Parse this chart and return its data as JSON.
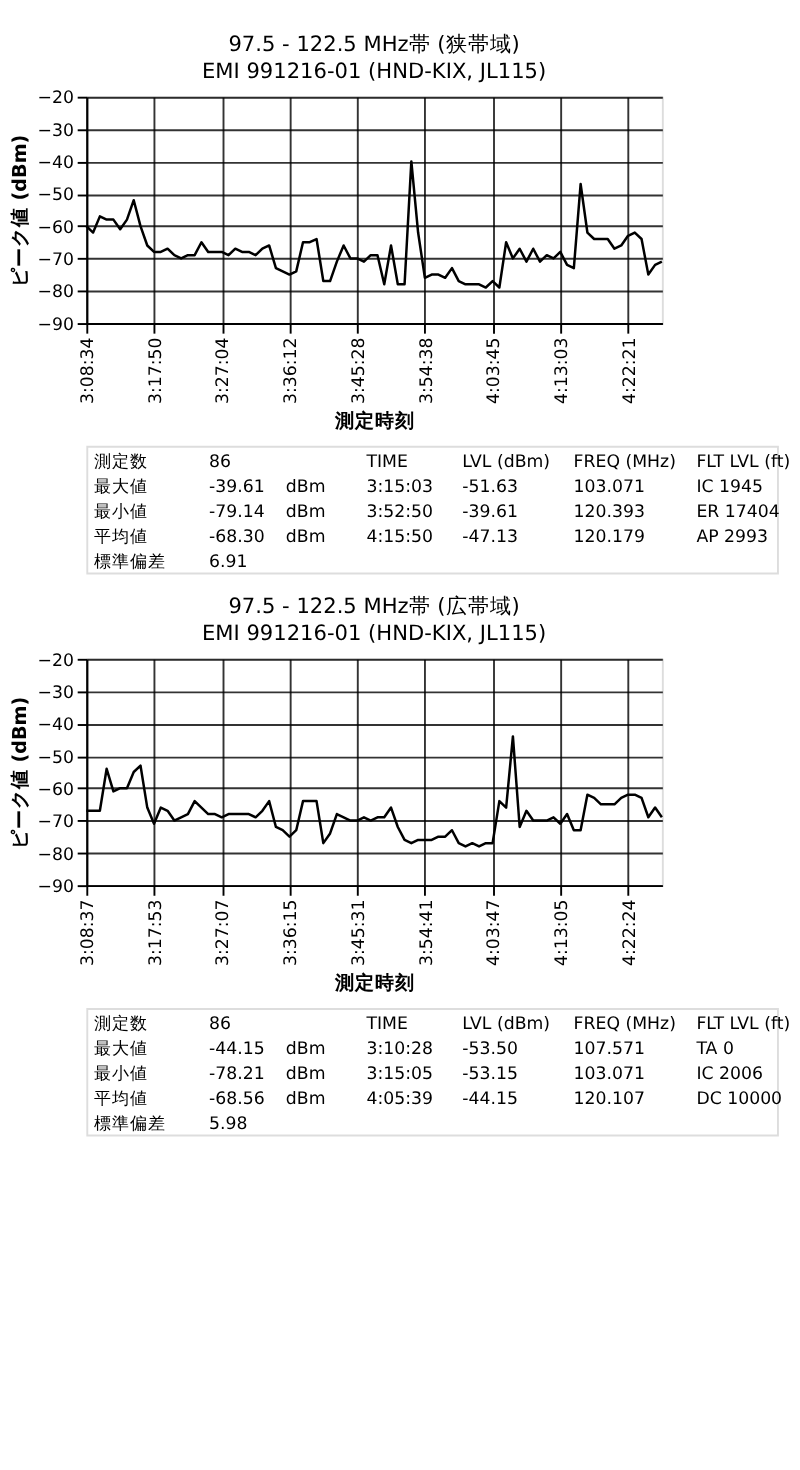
{
  "chart_data": [
    {
      "type": "line",
      "title": "97.5 - 122.5 MHz帯 (狭帯域)",
      "subtitle": "EMI 991216-01 (HND-KIX, JL115)",
      "xlabel": "測定時刻",
      "ylabel": "ピーク値 (dBm)",
      "color": "#000000",
      "grid": true,
      "ylim": [
        -90,
        -20
      ],
      "yticks": [
        -90,
        -80,
        -70,
        -60,
        -50,
        -40,
        -30,
        -20
      ],
      "categories": [
        "3:08:34",
        null,
        null,
        null,
        null,
        null,
        null,
        null,
        null,
        null,
        "3:17:50",
        null,
        null,
        null,
        null,
        null,
        null,
        null,
        null,
        null,
        "3:27:04",
        null,
        null,
        null,
        null,
        null,
        null,
        null,
        null,
        null,
        "3:36:12",
        null,
        null,
        null,
        null,
        null,
        null,
        null,
        null,
        null,
        "3:45:28",
        null,
        null,
        null,
        null,
        null,
        null,
        null,
        null,
        null,
        "3:54:38",
        null,
        null,
        null,
        null,
        null,
        null,
        null,
        null,
        null,
        "4:03:45",
        null,
        null,
        null,
        null,
        null,
        null,
        null,
        null,
        null,
        "4:13:03",
        null,
        null,
        null,
        null,
        null,
        null,
        null,
        null,
        null,
        "4:22:21",
        null,
        null,
        null,
        null,
        null
      ],
      "values": [
        -60,
        -62,
        -57,
        -58,
        -58,
        -61,
        -58,
        -52,
        -60,
        -66,
        -68,
        -68,
        -67,
        -69,
        -70,
        -69,
        -69,
        -65,
        -68,
        -68,
        -68,
        -69,
        -67,
        -68,
        -68,
        -69,
        -67,
        -66,
        -73,
        -74,
        -75,
        -74,
        -65,
        -65,
        -64,
        -77,
        -77,
        -71,
        -66,
        -70,
        -70,
        -71,
        -69,
        -69,
        -78,
        -66,
        -78,
        -78,
        -40,
        -62,
        -76,
        -75,
        -75,
        -76,
        -73,
        -77,
        -78,
        -78,
        -78,
        -79,
        -77,
        -79,
        -65,
        -70,
        -67,
        -71,
        -67,
        -71,
        -69,
        -70,
        -68,
        -72,
        -73,
        -47,
        -62,
        -64,
        -64,
        -64,
        -67,
        -66,
        -63,
        -62,
        -64,
        -75,
        -72,
        -71
      ],
      "annotations": [
        "測定数",
        "86",
        "TIME",
        "LVL (dBm)",
        "FREQ (MHz)",
        "FLT LVL (ft)",
        "最大値",
        "-39.61",
        "dBm",
        "3:15:03",
        "-51.63",
        "103.071",
        "IC 1945",
        "最小値",
        "-79.14",
        "dBm",
        "3:52:50",
        "-39.61",
        "120.393",
        "ER 17404",
        "平均値",
        "-68.30",
        "dBm",
        "4:15:50",
        "-47.13",
        "120.179",
        "AP 2993",
        "標準偏差",
        "6.91"
      ]
    },
    {
      "type": "line",
      "title": "97.5 - 122.5 MHz帯 (広帯域)",
      "subtitle": "EMI 991216-01 (HND-KIX, JL115)",
      "xlabel": "測定時刻",
      "ylabel": "ピーク値 (dBm)",
      "color": "#000000",
      "grid": true,
      "ylim": [
        -90,
        -20
      ],
      "yticks": [
        -90,
        -80,
        -70,
        -60,
        -50,
        -40,
        -30,
        -20
      ],
      "categories": [
        "3:08:37",
        null,
        null,
        null,
        null,
        null,
        null,
        null,
        null,
        null,
        "3:17:53",
        null,
        null,
        null,
        null,
        null,
        null,
        null,
        null,
        null,
        "3:27:07",
        null,
        null,
        null,
        null,
        null,
        null,
        null,
        null,
        null,
        "3:36:15",
        null,
        null,
        null,
        null,
        null,
        null,
        null,
        null,
        null,
        "3:45:31",
        null,
        null,
        null,
        null,
        null,
        null,
        null,
        null,
        null,
        "3:54:41",
        null,
        null,
        null,
        null,
        null,
        null,
        null,
        null,
        null,
        "4:03:47",
        null,
        null,
        null,
        null,
        null,
        null,
        null,
        null,
        null,
        "4:13:05",
        null,
        null,
        null,
        null,
        null,
        null,
        null,
        null,
        null,
        "4:22:24",
        null,
        null,
        null,
        null,
        null
      ],
      "values": [
        -67,
        -67,
        -67,
        -54,
        -61,
        -60,
        -60,
        -55,
        -53,
        -66,
        -71,
        -66,
        -67,
        -70,
        -69,
        -68,
        -64,
        -66,
        -68,
        -68,
        -69,
        -68,
        -68,
        -68,
        -68,
        -69,
        -67,
        -64,
        -72,
        -73,
        -75,
        -73,
        -64,
        -64,
        -64,
        -77,
        -74,
        -68,
        -69,
        -70,
        -70,
        -69,
        -70,
        -69,
        -69,
        -66,
        -72,
        -76,
        -77,
        -76,
        -76,
        -76,
        -75,
        -75,
        -73,
        -77,
        -78,
        -77,
        -78,
        -77,
        -77,
        -64,
        -66,
        -44,
        -72,
        -67,
        -70,
        -70,
        -70,
        -69,
        -71,
        -68,
        -73,
        -73,
        -62,
        -63,
        -65,
        -65,
        -65,
        -63,
        -62,
        -62,
        -63,
        -69,
        -66,
        -69
      ],
      "annotations": [
        "測定数",
        "86",
        "TIME",
        "LVL (dBm)",
        "FREQ (MHz)",
        "FLT LVL (ft)",
        "最大値",
        "-44.15",
        "dBm",
        "3:10:28",
        "-53.50",
        "107.571",
        "TA 0",
        "最小値",
        "-78.21",
        "dBm",
        "3:15:05",
        "-53.15",
        "103.071",
        "IC 2006",
        "平均値",
        "-68.56",
        "dBm",
        "4:05:39",
        "-44.15",
        "120.107",
        "DC 10000",
        "標準偏差",
        "5.98"
      ]
    }
  ]
}
